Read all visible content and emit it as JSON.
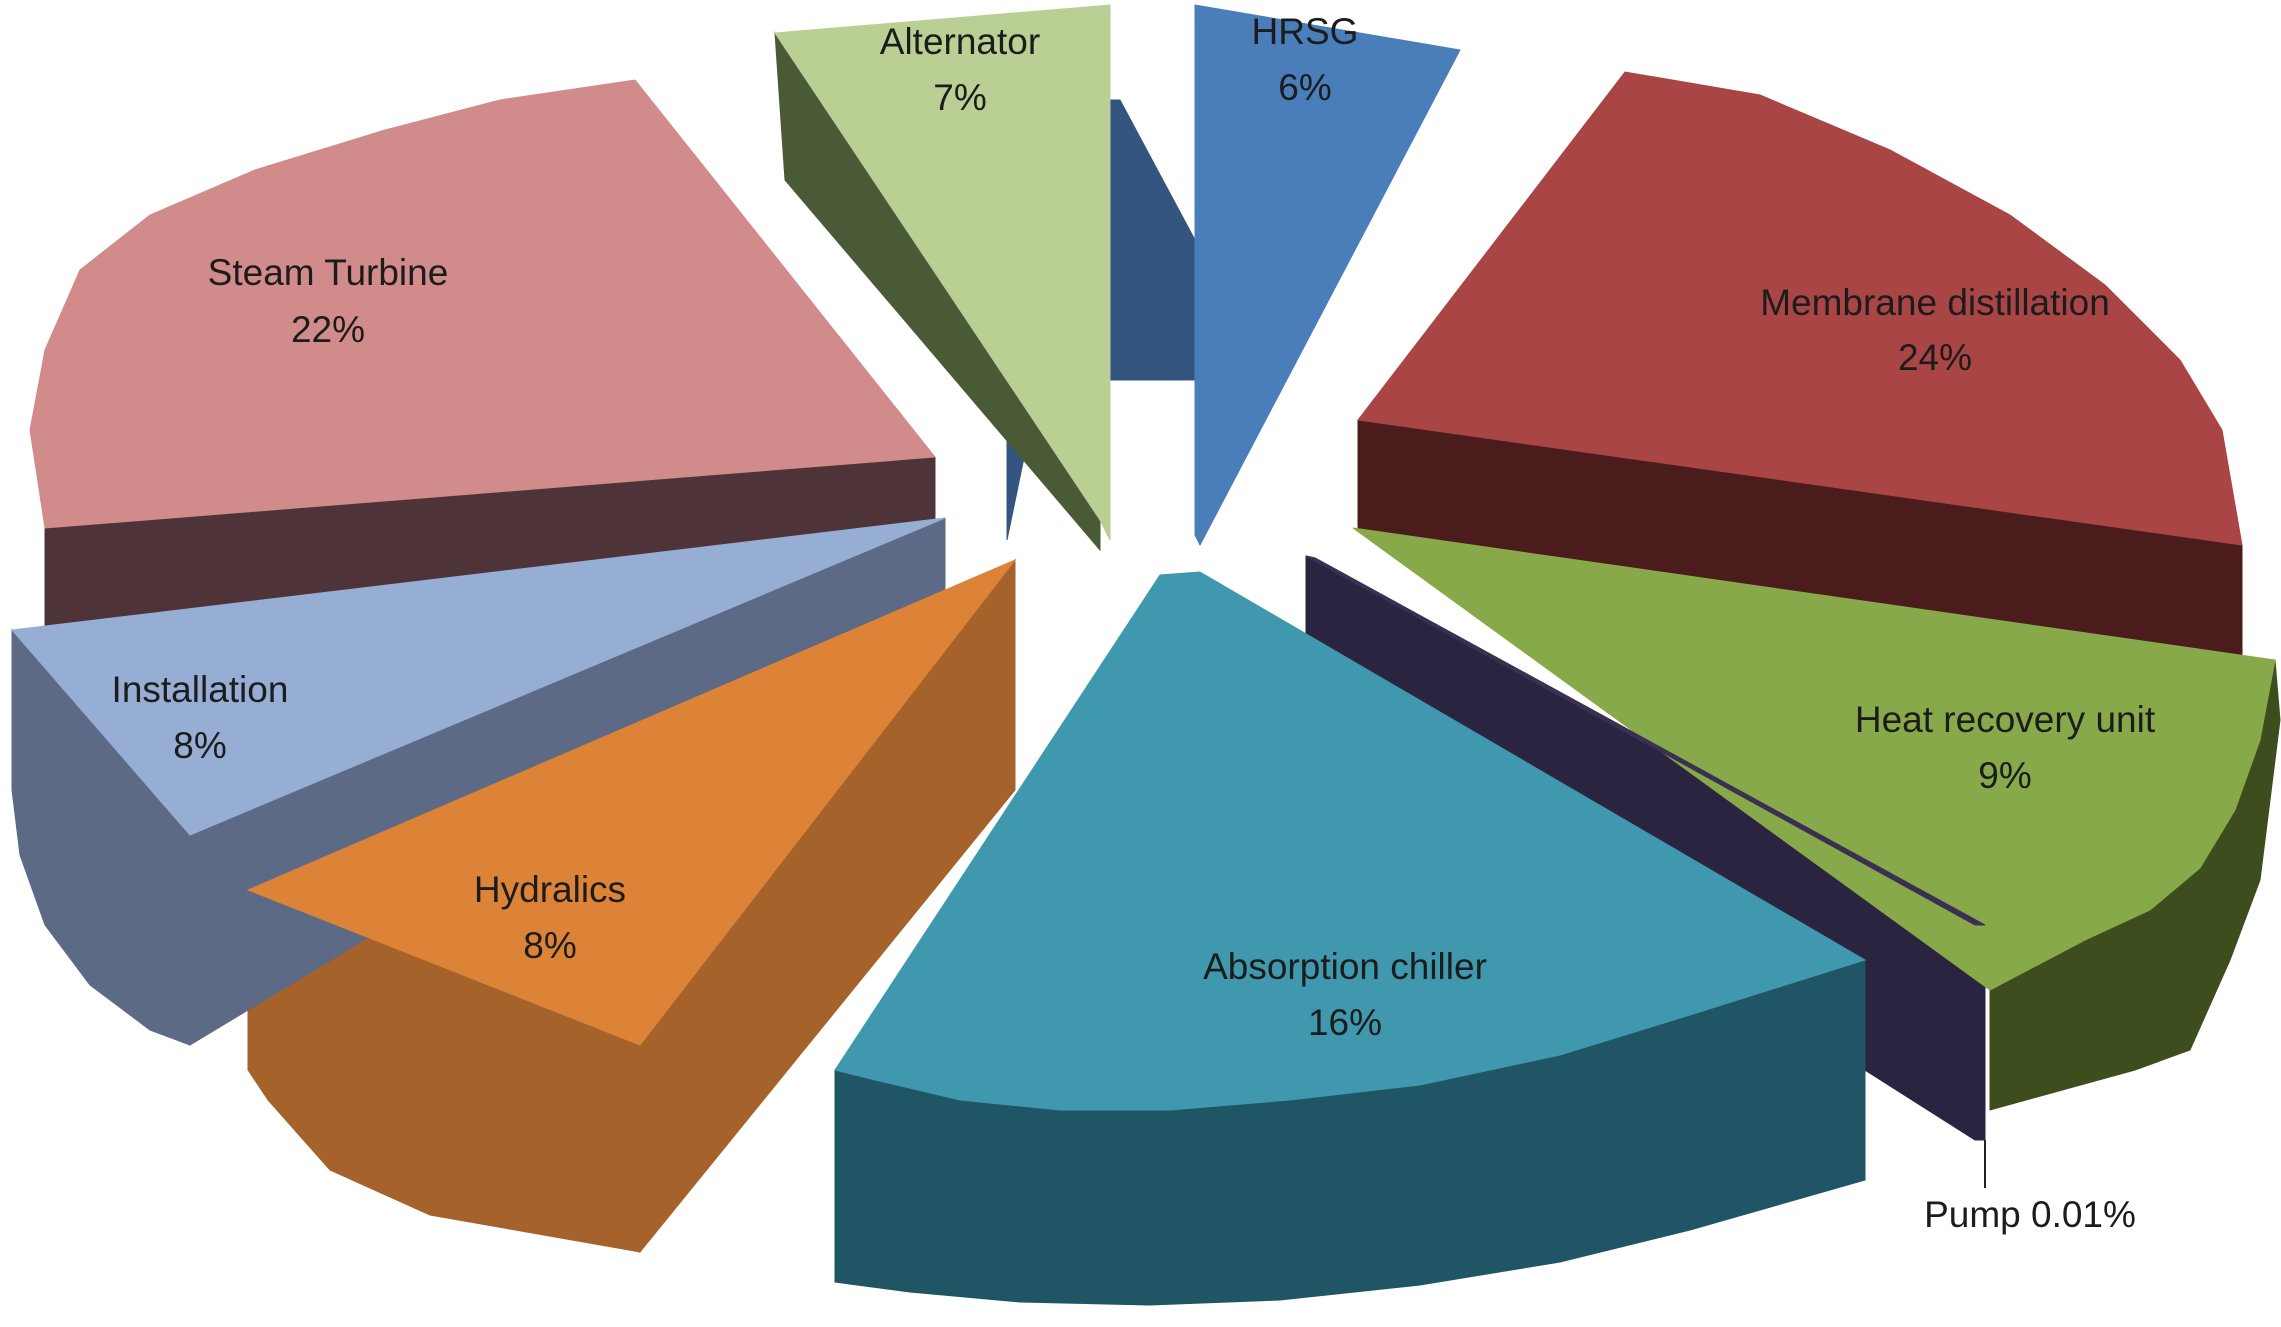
{
  "chart_data": {
    "type": "pie",
    "style": "3d-exploded",
    "legend": "none",
    "slices": [
      {
        "name": "HRSG",
        "value_label": "6%",
        "value": 6,
        "top_color": "#4a7ebb",
        "side_color": "#34557f"
      },
      {
        "name": "Membrane distillation",
        "value_label": "24%",
        "value": 24,
        "top_color": "#a94545",
        "side_color": "#4a1c1c"
      },
      {
        "name": "Heat recovery unit",
        "value_label": "9%",
        "value": 9,
        "top_color": "#88a94a",
        "side_color": "#3d4d1e"
      },
      {
        "name": "Pump",
        "value_label": "Pump 0.01%",
        "value": 0.01,
        "top_color": "#3a3152",
        "side_color": "#2b2440"
      },
      {
        "name": "Absorption chiller",
        "value_label": "16%",
        "value": 16,
        "top_color": "#3f98ae",
        "side_color": "#1f5565"
      },
      {
        "name": "Hydralics",
        "value_label": "8%",
        "value": 8,
        "top_color": "#dd8337",
        "side_color": "#a5622b"
      },
      {
        "name": "Installation",
        "value_label": "8%",
        "value": 8,
        "top_color": "#96add4",
        "side_color": "#5c6a86"
      },
      {
        "name": "Steam Turbine",
        "value_label": "22%",
        "value": 22,
        "top_color": "#d18b8b",
        "side_color": "#4e3438"
      },
      {
        "name": "Alternator",
        "value_label": "7%",
        "value": 7,
        "top_color": "#b9cf93",
        "side_color": "#4a5a36"
      }
    ]
  }
}
